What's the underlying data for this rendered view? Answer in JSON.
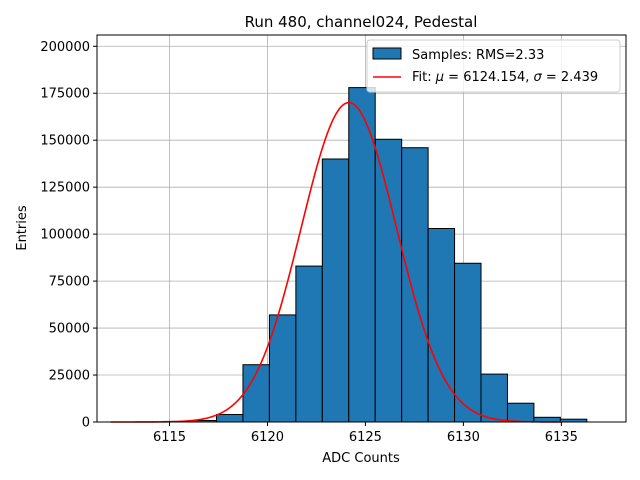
{
  "chart_data": {
    "type": "bar",
    "title": "Run 480, channel024, Pedestal",
    "xlabel": "ADC Counts",
    "ylabel": "Entries",
    "xlim": [
      6111.3,
      6138.3
    ],
    "ylim": [
      0,
      206000
    ],
    "xticks": [
      6115,
      6120,
      6125,
      6130,
      6135
    ],
    "yticks": [
      0,
      25000,
      50000,
      75000,
      100000,
      125000,
      150000,
      175000,
      200000
    ],
    "grid": true,
    "legend_position": "top-right",
    "histogram": {
      "name": "Samples: RMS=2.33",
      "bin_width": 1.35,
      "bins_left": [
        6112,
        6113.35,
        6114.7,
        6116.05,
        6117.4,
        6118.75,
        6120.1,
        6121.45,
        6122.8,
        6124.15,
        6125.5,
        6126.85,
        6128.2,
        6129.55,
        6130.9,
        6132.25,
        6133.6,
        6134.95,
        6136.3
      ],
      "values": [
        0,
        0,
        300,
        800,
        4000,
        30500,
        57000,
        83000,
        140000,
        178000,
        150500,
        146000,
        103000,
        84500,
        25500,
        10000,
        2500,
        1500,
        0
      ],
      "face_color": "#1f77b4",
      "edge_color": "#000000"
    },
    "fit": {
      "name": "Fit: μ = 6124.154, σ = 2.439",
      "label_prefix": "Fit: ",
      "mu_symbol": "μ",
      "mu_text": " = 6124.154, ",
      "sigma_symbol": "σ",
      "sigma_text": " = 2.439",
      "mu": 6124.154,
      "sigma": 2.439,
      "amplitude": 170000,
      "x_range": [
        6112,
        6135
      ],
      "color": "#ff0000"
    }
  }
}
